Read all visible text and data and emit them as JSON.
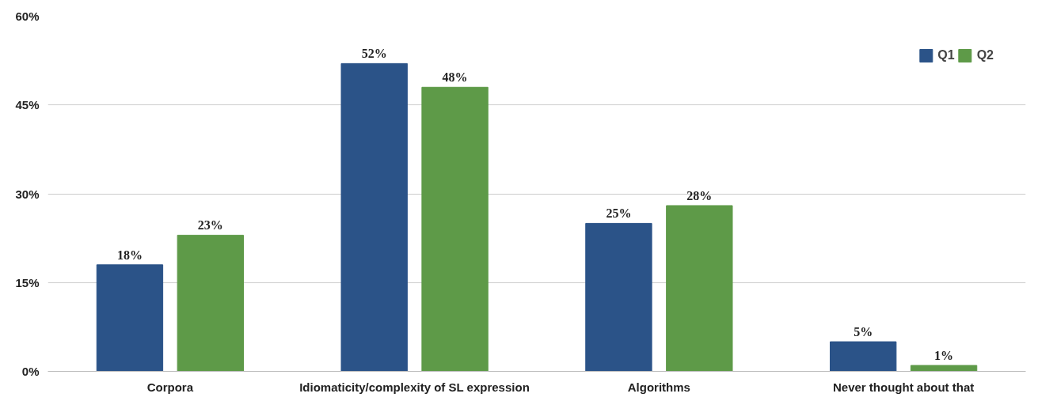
{
  "chart_data": {
    "type": "bar",
    "categories": [
      "Corpora",
      "Idiomaticity/complexity of SL expression",
      "Algorithms",
      "Never thought about that"
    ],
    "series": [
      {
        "name": "Q1",
        "color": "#2b5388",
        "values": [
          18,
          52,
          25,
          5
        ],
        "value_labels": [
          "18%",
          "52%",
          "25%",
          "5%"
        ]
      },
      {
        "name": "Q2",
        "color": "#5e9a48",
        "values": [
          23,
          48,
          28,
          1
        ],
        "value_labels": [
          "23%",
          "48%",
          "28%",
          "1%"
        ]
      }
    ],
    "ylim": [
      0,
      60
    ],
    "yticks": [
      {
        "value": 0,
        "label": "0%"
      },
      {
        "value": 15,
        "label": "15%"
      },
      {
        "value": 30,
        "label": "30%"
      },
      {
        "value": 45,
        "label": "45%"
      },
      {
        "value": 60,
        "label": "60%"
      }
    ],
    "grid": "y",
    "legend": "top right"
  }
}
